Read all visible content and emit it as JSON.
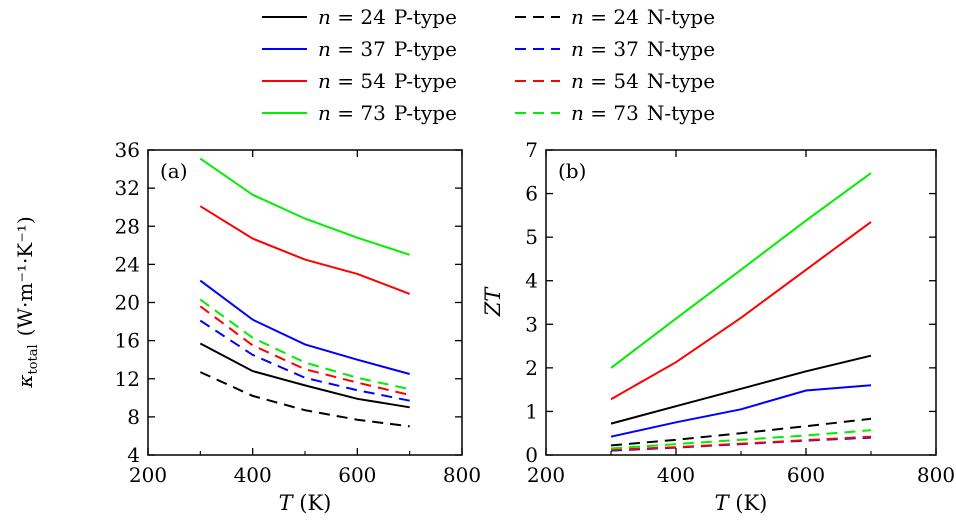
{
  "legend": {
    "items": [
      {
        "n_label": "n",
        "eq": " = ",
        "n_value": "24",
        "type": "P-type",
        "color": "#000000",
        "dashed": false
      },
      {
        "n_label": "n",
        "eq": " = ",
        "n_value": "37",
        "type": "P-type",
        "color": "#0000ff",
        "dashed": false
      },
      {
        "n_label": "n",
        "eq": " = ",
        "n_value": "54",
        "type": "P-type",
        "color": "#ff0000",
        "dashed": false
      },
      {
        "n_label": "n",
        "eq": " = ",
        "n_value": "73",
        "type": "P-type",
        "color": "#00ee00",
        "dashed": false
      },
      {
        "n_label": "n",
        "eq": " = ",
        "n_value": "24",
        "type": "N-type",
        "color": "#000000",
        "dashed": true
      },
      {
        "n_label": "n",
        "eq": " = ",
        "n_value": "37",
        "type": "N-type",
        "color": "#0000ff",
        "dashed": true
      },
      {
        "n_label": "n",
        "eq": " = ",
        "n_value": "54",
        "type": "N-type",
        "color": "#ff0000",
        "dashed": true
      },
      {
        "n_label": "n",
        "eq": " = ",
        "n_value": "73",
        "type": "N-type",
        "color": "#00ee00",
        "dashed": true
      }
    ],
    "placement": "top-center"
  },
  "chart_data": [
    {
      "type": "line",
      "panel_label": "(a)",
      "xlabel_var": "T",
      "xlabel_unit": " (K)",
      "ylabel_kappa": "κ",
      "ylabel_sub": "total",
      "ylabel_unit": "(W·m⁻¹·K⁻¹)",
      "xlim": [
        200,
        800
      ],
      "ylim": [
        4,
        36
      ],
      "xticks": [
        200,
        400,
        600,
        800
      ],
      "yticks": [
        4,
        8,
        12,
        16,
        20,
        24,
        28,
        32,
        36
      ],
      "x": [
        300,
        400,
        500,
        600,
        700
      ],
      "series": [
        {
          "name": "n = 24 P-type",
          "color": "#000000",
          "dashed": false,
          "values": [
            15.7,
            12.8,
            11.3,
            9.9,
            9.0
          ]
        },
        {
          "name": "n = 37 P-type",
          "color": "#0000ff",
          "dashed": false,
          "values": [
            22.3,
            18.2,
            15.6,
            14.0,
            12.5
          ]
        },
        {
          "name": "n = 54 P-type",
          "color": "#ff0000",
          "dashed": false,
          "values": [
            30.1,
            26.7,
            24.5,
            23.0,
            20.9
          ]
        },
        {
          "name": "n = 73 P-type",
          "color": "#00ee00",
          "dashed": false,
          "values": [
            35.1,
            31.3,
            28.8,
            26.8,
            25.0
          ]
        },
        {
          "name": "n = 24 N-type",
          "color": "#000000",
          "dashed": true,
          "values": [
            12.7,
            10.2,
            8.7,
            7.7,
            7.0
          ]
        },
        {
          "name": "n = 37 N-type",
          "color": "#0000ff",
          "dashed": true,
          "values": [
            18.1,
            14.5,
            12.1,
            10.8,
            9.7
          ]
        },
        {
          "name": "n = 54 N-type",
          "color": "#ff0000",
          "dashed": true,
          "values": [
            19.6,
            15.5,
            13.0,
            11.6,
            10.3
          ]
        },
        {
          "name": "n = 73 N-type",
          "color": "#00ee00",
          "dashed": true,
          "values": [
            20.3,
            16.3,
            13.7,
            12.1,
            10.9
          ]
        }
      ]
    },
    {
      "type": "line",
      "panel_label": "(b)",
      "xlabel_var": "T",
      "xlabel_unit": " (K)",
      "ylabel": "ZT",
      "xlim": [
        200,
        800
      ],
      "ylim": [
        0,
        7
      ],
      "xticks": [
        200,
        400,
        600,
        800
      ],
      "yticks": [
        0,
        1,
        2,
        3,
        4,
        5,
        6,
        7
      ],
      "x": [
        300,
        400,
        500,
        600,
        700
      ],
      "series": [
        {
          "name": "n = 24 P-type",
          "color": "#000000",
          "dashed": false,
          "values": [
            0.72,
            1.12,
            1.52,
            1.92,
            2.28
          ]
        },
        {
          "name": "n = 37 P-type",
          "color": "#0000ff",
          "dashed": false,
          "values": [
            0.42,
            0.75,
            1.05,
            1.48,
            1.6
          ]
        },
        {
          "name": "n = 54 P-type",
          "color": "#ff0000",
          "dashed": false,
          "values": [
            1.28,
            2.13,
            3.15,
            4.25,
            5.35
          ]
        },
        {
          "name": "n = 73 P-type",
          "color": "#00ee00",
          "dashed": false,
          "values": [
            2.0,
            3.13,
            4.25,
            5.38,
            6.47
          ]
        },
        {
          "name": "n = 24 N-type",
          "color": "#000000",
          "dashed": true,
          "values": [
            0.22,
            0.35,
            0.5,
            0.66,
            0.83
          ]
        },
        {
          "name": "n = 37 N-type",
          "color": "#0000ff",
          "dashed": true,
          "values": [
            0.1,
            0.17,
            0.25,
            0.33,
            0.4
          ]
        },
        {
          "name": "n = 54 N-type",
          "color": "#ff0000",
          "dashed": true,
          "values": [
            0.12,
            0.18,
            0.26,
            0.34,
            0.42
          ]
        },
        {
          "name": "n = 73 N-type",
          "color": "#00ee00",
          "dashed": true,
          "values": [
            0.15,
            0.25,
            0.35,
            0.45,
            0.57
          ]
        }
      ]
    }
  ]
}
